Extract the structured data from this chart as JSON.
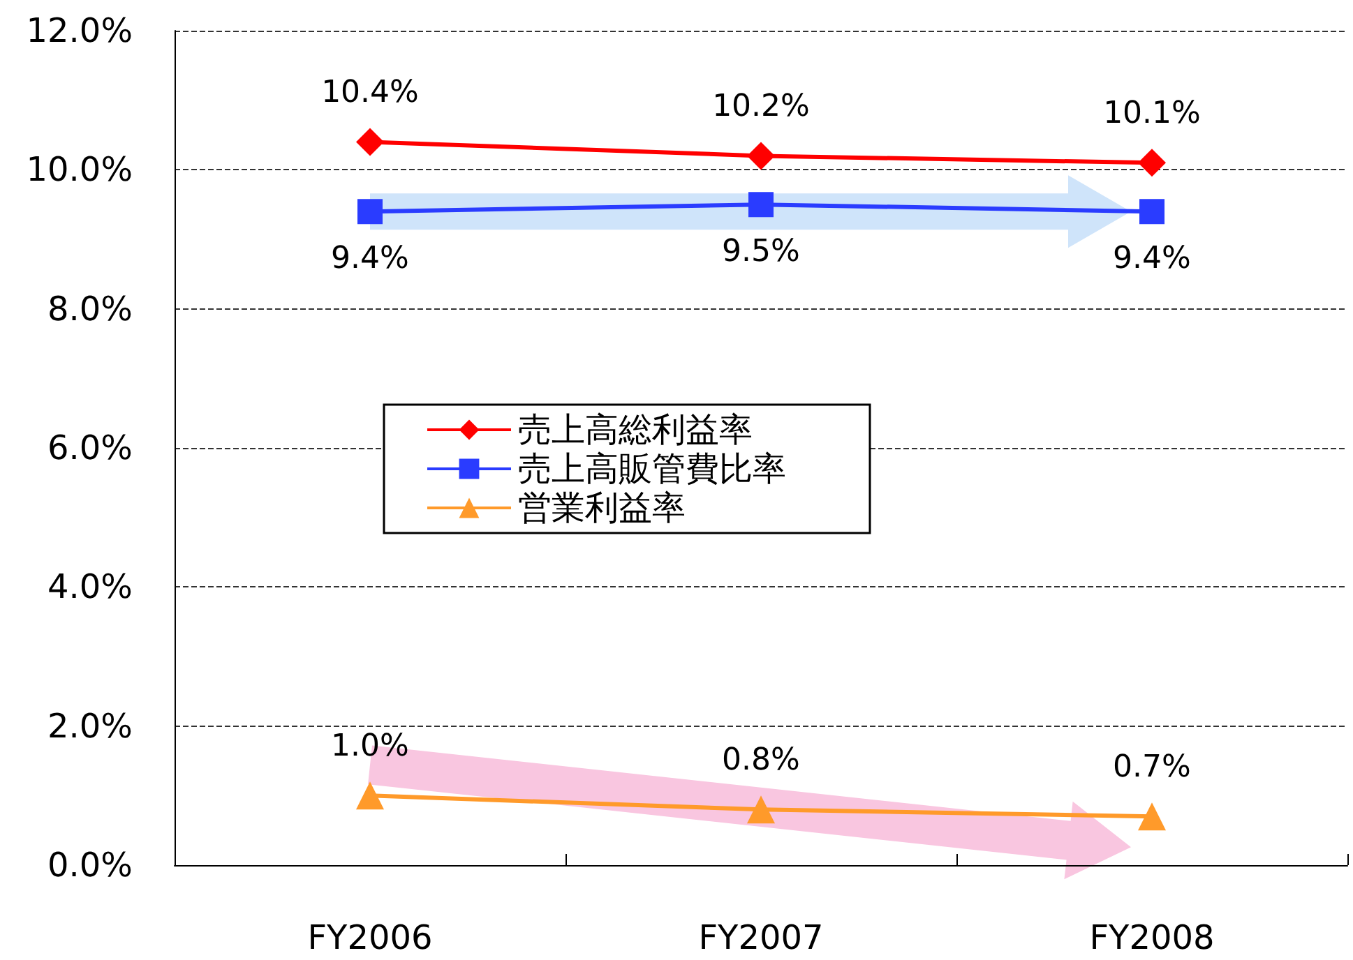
{
  "chart_data": {
    "type": "line",
    "categories": [
      "FY2006",
      "FY2007",
      "FY2008"
    ],
    "series": [
      {
        "name": "売上高総利益率",
        "color": "#ff0000",
        "marker": "diamond",
        "values": [
          10.4,
          10.2,
          10.1
        ],
        "value_labels": [
          "10.4%",
          "10.2%",
          "10.1%"
        ]
      },
      {
        "name": "売上高販管費比率",
        "color": "#2a3cff",
        "marker": "square",
        "values": [
          9.4,
          9.5,
          9.4
        ],
        "value_labels": [
          "9.4%",
          "9.5%",
          "9.4%"
        ]
      },
      {
        "name": "営業利益率",
        "color": "#ff9a2a",
        "marker": "triangle",
        "values": [
          1.0,
          0.8,
          0.7
        ],
        "value_labels": [
          "1.0%",
          "0.8%",
          "0.7%"
        ]
      }
    ],
    "ylim": [
      0,
      12
    ],
    "yticks": [
      {
        "value": 0,
        "label": "0.0%"
      },
      {
        "value": 2,
        "label": "2.0%"
      },
      {
        "value": 4,
        "label": "4.0%"
      },
      {
        "value": 6,
        "label": "6.0%"
      },
      {
        "value": 8,
        "label": "8.0%"
      },
      {
        "value": 10,
        "label": "10.0%"
      },
      {
        "value": 12,
        "label": "12.0%"
      }
    ],
    "grid": "y",
    "legend": "center"
  }
}
